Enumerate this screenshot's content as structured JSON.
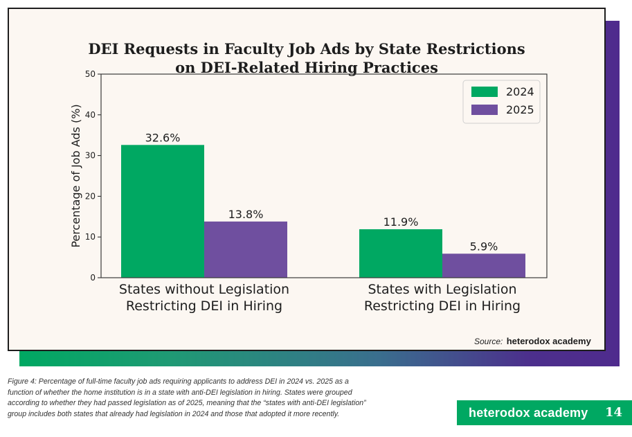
{
  "chart_data": {
    "type": "bar",
    "title_lines": [
      "DEI Requests in Faculty Job Ads by State Restrictions",
      "on DEI-Related Hiring Practices"
    ],
    "ylabel": "Percentage of Job Ads (%)",
    "xlabel": "",
    "ylim": [
      0,
      50
    ],
    "yticks": [
      "0",
      "10",
      "20",
      "30",
      "40",
      "50"
    ],
    "categories": [
      [
        "States without Legislation",
        "Restricting DEI in Hiring"
      ],
      [
        "States with Legislation",
        "Restricting DEI in Hiring"
      ]
    ],
    "series": [
      {
        "name": "2024",
        "values": [
          32.6,
          11.9
        ],
        "labels": [
          "32.6%",
          "11.9%"
        ],
        "color": "#00a862"
      },
      {
        "name": "2025",
        "values": [
          13.8,
          5.9
        ],
        "labels": [
          "13.8%",
          "5.9%"
        ],
        "color": "#6f4f9f"
      }
    ],
    "legend": "top-right",
    "grid": false
  },
  "source": {
    "label": "Source:",
    "brand": "heterodox academy"
  },
  "caption": [
    "Figure 4: Percentage of full-time faculty job ads requiring applicants to address DEI in 2024 vs. 2025 as a",
    "function of whether the home institution is in a state with anti-DEI legislation in hiring. States were grouped",
    "according to whether they had passed legislation as of 2025, meaning that the “states with anti-DEI legislation”",
    "group includes both states that already had legislation in 2024 and those that adopted it more recently."
  ],
  "footer": {
    "brand": "heterodox academy",
    "page_number": "14"
  },
  "colors": {
    "green": "#00a862",
    "purple": "#6f4f9f",
    "card_background": "#fcf7f2"
  }
}
